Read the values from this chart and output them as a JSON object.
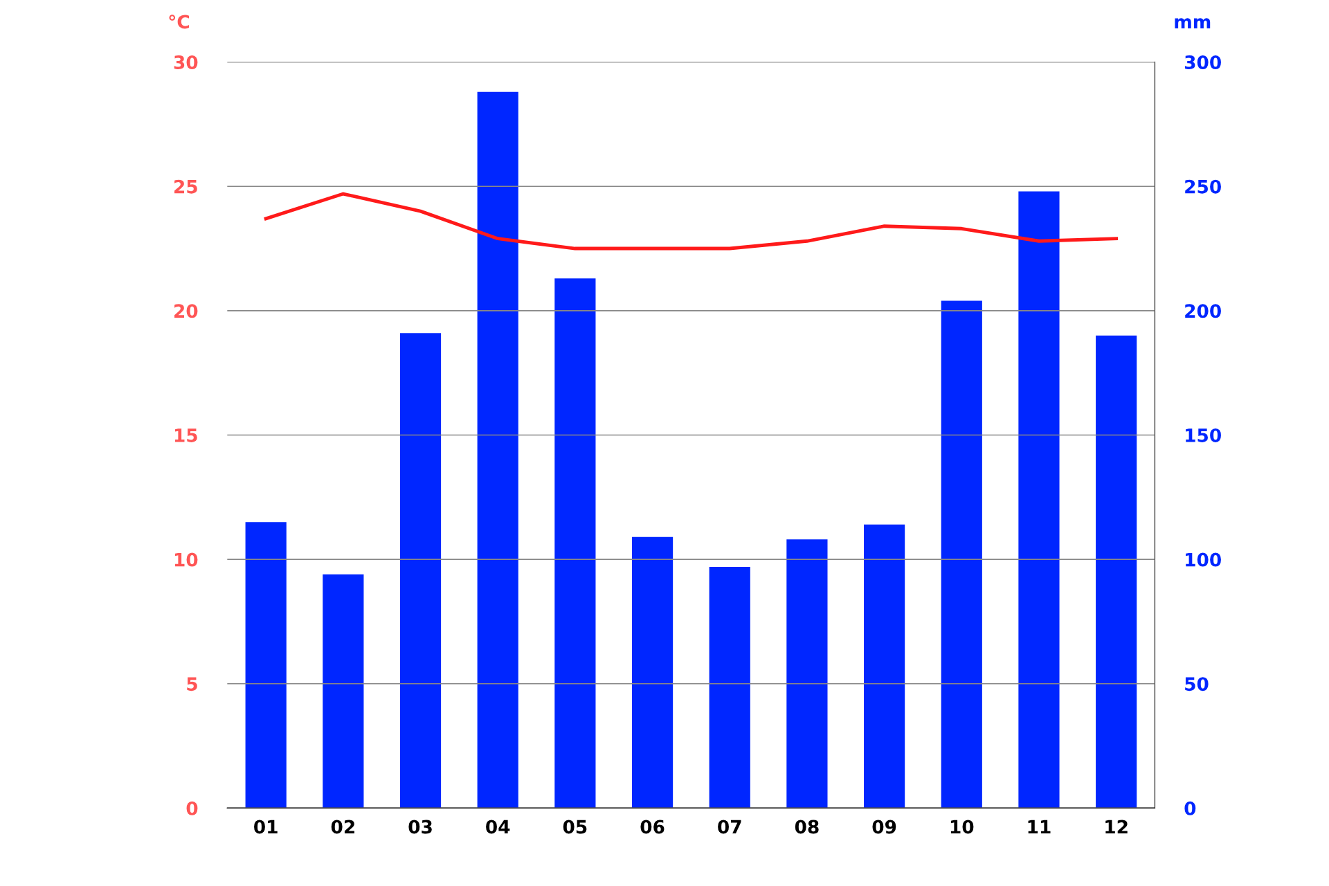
{
  "chart_data": {
    "type": "bar",
    "categories": [
      "01",
      "02",
      "03",
      "04",
      "05",
      "06",
      "07",
      "08",
      "09",
      "10",
      "11",
      "12"
    ],
    "ylabel": "°C",
    "y2label": "mm",
    "ylim": [
      0,
      30
    ],
    "yticks": [
      0,
      5,
      10,
      15,
      20,
      25,
      30
    ],
    "y2lim": [
      0,
      300
    ],
    "y2ticks": [
      0,
      50,
      100,
      150,
      200,
      250,
      300
    ],
    "grid": "y",
    "legend": false,
    "series": [
      {
        "axis": "y2",
        "color": "#0026ff",
        "values": [
          115,
          94,
          191,
          288,
          213,
          109,
          97,
          108,
          114,
          204,
          248,
          190
        ]
      },
      {
        "type": "line",
        "axis": "y",
        "color": "#ff1a1a",
        "values": [
          23.7,
          24.7,
          24.0,
          22.9,
          22.5,
          22.5,
          22.5,
          22.8,
          23.4,
          23.3,
          22.8,
          22.9
        ]
      }
    ]
  }
}
